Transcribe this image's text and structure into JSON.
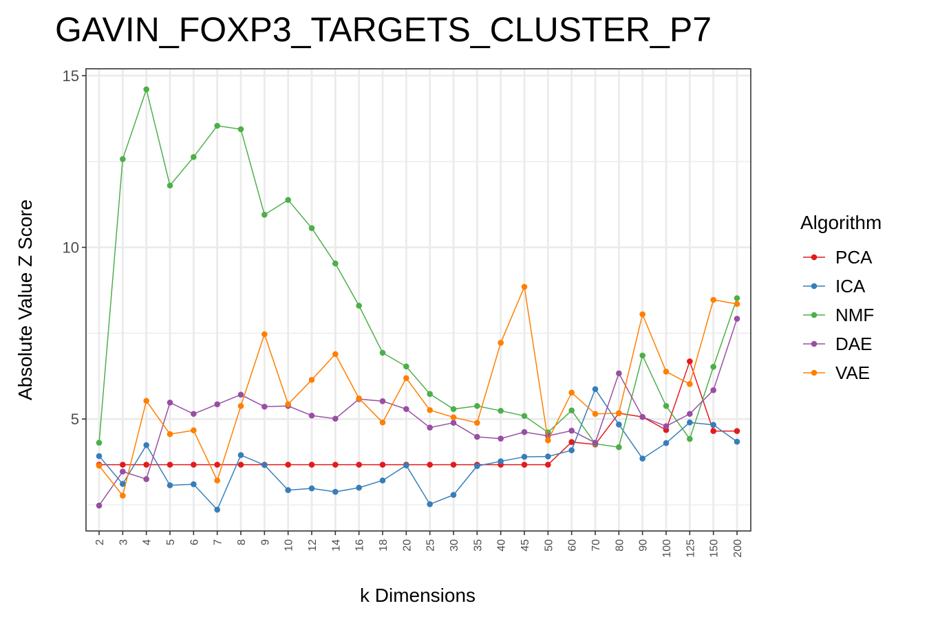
{
  "chart_data": {
    "type": "line",
    "title": "GAVIN_FOXP3_TARGETS_CLUSTER_P7",
    "xlabel": "k Dimensions",
    "ylabel": "Absolute Value Z Score",
    "categories": [
      "2",
      "3",
      "4",
      "5",
      "6",
      "7",
      "8",
      "9",
      "10",
      "12",
      "14",
      "16",
      "18",
      "20",
      "25",
      "30",
      "35",
      "40",
      "45",
      "50",
      "60",
      "70",
      "80",
      "90",
      "100",
      "125",
      "150",
      "200"
    ],
    "yticks": [
      5,
      10,
      15
    ],
    "ylim": [
      1.74,
      15.2
    ],
    "grid": true,
    "legend": {
      "title": "Algorithm",
      "position": "right"
    },
    "series": [
      {
        "name": "PCA",
        "color": "#e41a1c",
        "values": [
          3.67,
          3.67,
          3.67,
          3.67,
          3.67,
          3.67,
          3.67,
          3.67,
          3.67,
          3.67,
          3.67,
          3.67,
          3.67,
          3.67,
          3.67,
          3.67,
          3.67,
          3.67,
          3.67,
          3.67,
          4.33,
          4.26,
          5.17,
          5.06,
          4.68,
          6.68,
          4.65,
          4.65
        ]
      },
      {
        "name": "ICA",
        "color": "#377eb8",
        "values": [
          3.92,
          3.11,
          4.24,
          3.07,
          3.1,
          2.36,
          3.95,
          3.66,
          2.93,
          2.98,
          2.88,
          3.0,
          3.21,
          3.65,
          2.52,
          2.79,
          3.63,
          3.77,
          3.9,
          3.91,
          4.09,
          5.87,
          4.84,
          3.85,
          4.3,
          4.9,
          4.83,
          4.34
        ]
      },
      {
        "name": "NMF",
        "color": "#4daf4a",
        "values": [
          4.31,
          12.57,
          14.6,
          11.8,
          12.63,
          13.54,
          13.44,
          10.95,
          11.38,
          10.56,
          9.53,
          8.3,
          6.93,
          6.53,
          5.73,
          5.29,
          5.38,
          5.24,
          5.09,
          4.61,
          5.25,
          4.28,
          4.18,
          6.85,
          5.38,
          4.42,
          6.52,
          8.52
        ]
      },
      {
        "name": "DAE",
        "color": "#984ea3",
        "values": [
          2.48,
          3.47,
          3.25,
          5.48,
          5.15,
          5.43,
          5.71,
          5.36,
          5.38,
          5.1,
          5.01,
          5.58,
          5.52,
          5.29,
          4.75,
          4.89,
          4.48,
          4.43,
          4.62,
          4.51,
          4.66,
          4.31,
          6.33,
          5.06,
          4.79,
          5.15,
          5.84,
          7.92
        ]
      },
      {
        "name": "VAE",
        "color": "#ff7f00",
        "values": [
          3.64,
          2.77,
          5.53,
          4.56,
          4.67,
          3.21,
          5.38,
          7.47,
          5.43,
          6.14,
          6.89,
          5.6,
          4.9,
          6.19,
          5.26,
          5.05,
          4.89,
          7.22,
          8.85,
          4.38,
          5.77,
          5.15,
          5.17,
          8.05,
          6.38,
          6.02,
          8.47,
          8.35
        ]
      }
    ]
  }
}
